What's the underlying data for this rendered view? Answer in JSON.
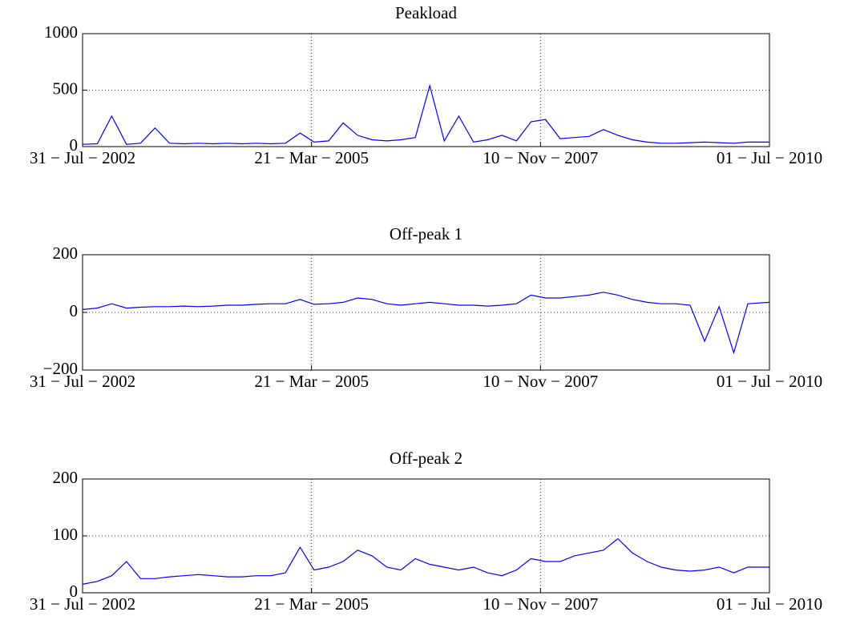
{
  "chart_data": [
    {
      "type": "line",
      "title": "Peakload",
      "x": [
        "2002-07-31",
        "2002-10-01",
        "2002-12-01",
        "2003-02-01",
        "2003-04-01",
        "2003-06-01",
        "2003-08-01",
        "2003-10-01",
        "2003-12-01",
        "2004-02-01",
        "2004-04-01",
        "2004-06-01",
        "2004-08-01",
        "2004-10-01",
        "2004-12-01",
        "2005-02-01",
        "2005-04-01",
        "2005-06-01",
        "2005-08-01",
        "2005-10-01",
        "2005-12-01",
        "2006-02-01",
        "2006-04-01",
        "2006-06-01",
        "2006-08-01",
        "2006-10-01",
        "2006-12-01",
        "2007-02-01",
        "2007-04-01",
        "2007-06-01",
        "2007-08-01",
        "2007-10-01",
        "2007-12-01",
        "2008-02-01",
        "2008-04-01",
        "2008-06-01",
        "2008-08-01",
        "2008-10-01",
        "2008-12-01",
        "2009-02-01",
        "2009-04-01",
        "2009-06-01",
        "2009-08-01",
        "2009-10-01",
        "2009-12-01",
        "2010-02-01",
        "2010-04-01",
        "2010-07-01"
      ],
      "values": [
        20,
        25,
        270,
        20,
        30,
        165,
        30,
        25,
        30,
        25,
        30,
        25,
        30,
        25,
        30,
        120,
        40,
        50,
        210,
        100,
        60,
        50,
        60,
        80,
        540,
        50,
        270,
        40,
        60,
        100,
        50,
        220,
        240,
        70,
        80,
        90,
        150,
        100,
        60,
        40,
        30,
        30,
        35,
        40,
        35,
        30,
        40,
        40
      ],
      "color": "#0000ff",
      "xlim": [
        "2002-07-31",
        "2010-07-01"
      ],
      "xticks": [
        {
          "value": "2002-07-31",
          "label": "31 − Jul − 2002"
        },
        {
          "value": "2005-03-21",
          "label": "21 − Mar − 2005"
        },
        {
          "value": "2007-11-10",
          "label": "10 − Nov − 2007"
        },
        {
          "value": "2010-07-01",
          "label": "01 − Jul − 2010"
        }
      ],
      "ylim": [
        0,
        1000
      ],
      "yticks": [
        0,
        500,
        1000
      ],
      "grid": true
    },
    {
      "type": "line",
      "title": "Off-peak 1",
      "x": [
        "2002-07-31",
        "2002-10-01",
        "2002-12-01",
        "2003-02-01",
        "2003-04-01",
        "2003-06-01",
        "2003-08-01",
        "2003-10-01",
        "2003-12-01",
        "2004-02-01",
        "2004-04-01",
        "2004-06-01",
        "2004-08-01",
        "2004-10-01",
        "2004-12-01",
        "2005-02-01",
        "2005-04-01",
        "2005-06-01",
        "2005-08-01",
        "2005-10-01",
        "2005-12-01",
        "2006-02-01",
        "2006-04-01",
        "2006-06-01",
        "2006-08-01",
        "2006-10-01",
        "2006-12-01",
        "2007-02-01",
        "2007-04-01",
        "2007-06-01",
        "2007-08-01",
        "2007-10-01",
        "2007-12-01",
        "2008-02-01",
        "2008-04-01",
        "2008-06-01",
        "2008-08-01",
        "2008-10-01",
        "2008-12-01",
        "2009-02-01",
        "2009-04-01",
        "2009-06-01",
        "2009-08-01",
        "2009-10-01",
        "2009-12-01",
        "2010-02-01",
        "2010-04-01",
        "2010-07-01"
      ],
      "values": [
        10,
        15,
        30,
        15,
        18,
        20,
        20,
        22,
        20,
        22,
        25,
        25,
        28,
        30,
        30,
        45,
        28,
        30,
        35,
        50,
        45,
        30,
        25,
        30,
        35,
        30,
        25,
        25,
        22,
        25,
        30,
        60,
        50,
        50,
        55,
        60,
        70,
        60,
        45,
        35,
        30,
        30,
        25,
        -100,
        20,
        -140,
        30,
        35
      ],
      "color": "#0000ff",
      "xlim": [
        "2002-07-31",
        "2010-07-01"
      ],
      "xticks": [
        {
          "value": "2002-07-31",
          "label": "31 − Jul − 2002"
        },
        {
          "value": "2005-03-21",
          "label": "21 − Mar − 2005"
        },
        {
          "value": "2007-11-10",
          "label": "10 − Nov − 2007"
        },
        {
          "value": "2010-07-01",
          "label": "01 − Jul − 2010"
        }
      ],
      "ylim": [
        -200,
        200
      ],
      "yticks": [
        {
          "value": -200,
          "label": "−200"
        },
        0,
        200
      ],
      "grid": true
    },
    {
      "type": "line",
      "title": "Off-peak 2",
      "x": [
        "2002-07-31",
        "2002-10-01",
        "2002-12-01",
        "2003-02-01",
        "2003-04-01",
        "2003-06-01",
        "2003-08-01",
        "2003-10-01",
        "2003-12-01",
        "2004-02-01",
        "2004-04-01",
        "2004-06-01",
        "2004-08-01",
        "2004-10-01",
        "2004-12-01",
        "2005-02-01",
        "2005-04-01",
        "2005-06-01",
        "2005-08-01",
        "2005-10-01",
        "2005-12-01",
        "2006-02-01",
        "2006-04-01",
        "2006-06-01",
        "2006-08-01",
        "2006-10-01",
        "2006-12-01",
        "2007-02-01",
        "2007-04-01",
        "2007-06-01",
        "2007-08-01",
        "2007-10-01",
        "2007-12-01",
        "2008-02-01",
        "2008-04-01",
        "2008-06-01",
        "2008-08-01",
        "2008-10-01",
        "2008-12-01",
        "2009-02-01",
        "2009-04-01",
        "2009-06-01",
        "2009-08-01",
        "2009-10-01",
        "2009-12-01",
        "2010-02-01",
        "2010-04-01",
        "2010-07-01"
      ],
      "values": [
        15,
        20,
        30,
        55,
        25,
        25,
        28,
        30,
        32,
        30,
        28,
        28,
        30,
        30,
        35,
        80,
        40,
        45,
        55,
        75,
        65,
        45,
        40,
        60,
        50,
        45,
        40,
        45,
        35,
        30,
        40,
        60,
        55,
        55,
        65,
        70,
        75,
        95,
        70,
        55,
        45,
        40,
        38,
        40,
        45,
        35,
        45,
        45
      ],
      "color": "#0000ff",
      "xlim": [
        "2002-07-31",
        "2010-07-01"
      ],
      "xticks": [
        {
          "value": "2002-07-31",
          "label": "31 − Jul − 2002"
        },
        {
          "value": "2005-03-21",
          "label": "21 − Mar − 2005"
        },
        {
          "value": "2007-11-10",
          "label": "10 − Nov − 2007"
        },
        {
          "value": "2010-07-01",
          "label": "01 − Jul − 2010"
        }
      ],
      "ylim": [
        0,
        200
      ],
      "yticks": [
        0,
        100,
        200
      ],
      "grid": true
    }
  ]
}
